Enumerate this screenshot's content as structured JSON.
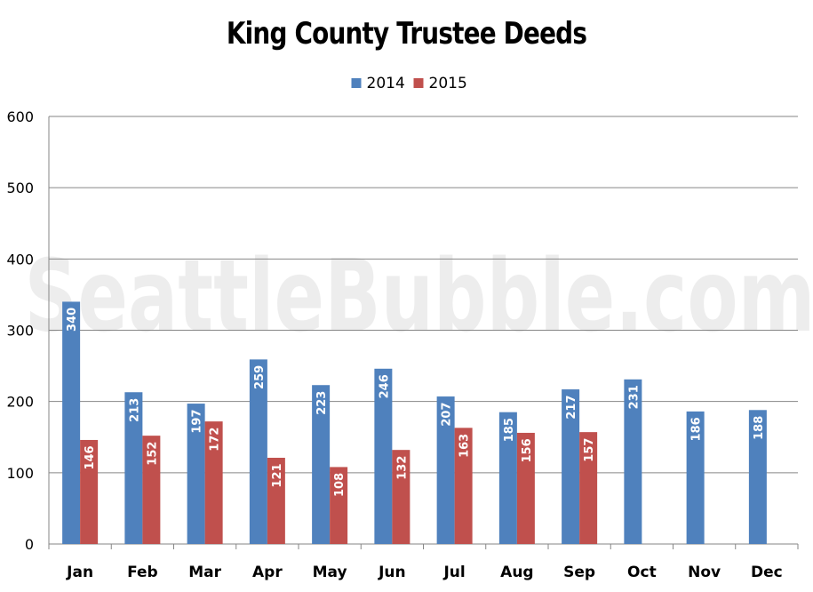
{
  "chart_data": {
    "type": "bar",
    "title": "King County Trustee Deeds",
    "xlabel": "",
    "ylabel": "",
    "categories": [
      "Jan",
      "Feb",
      "Mar",
      "Apr",
      "May",
      "Jun",
      "Jul",
      "Aug",
      "Sep",
      "Oct",
      "Nov",
      "Dec"
    ],
    "series": [
      {
        "name": "2014",
        "color": "#4f81bd",
        "values": [
          340,
          213,
          197,
          259,
          223,
          246,
          207,
          185,
          217,
          231,
          186,
          188
        ]
      },
      {
        "name": "2015",
        "color": "#c0504d",
        "values": [
          146,
          152,
          172,
          121,
          108,
          132,
          163,
          156,
          157,
          null,
          null,
          null
        ]
      }
    ],
    "ylim": [
      0,
      600
    ],
    "yticks": [
      0,
      100,
      200,
      300,
      400,
      500,
      600
    ],
    "grid": true,
    "legend_position": "top-center",
    "data_labels": true,
    "watermark": "SeattleBubble.com"
  }
}
